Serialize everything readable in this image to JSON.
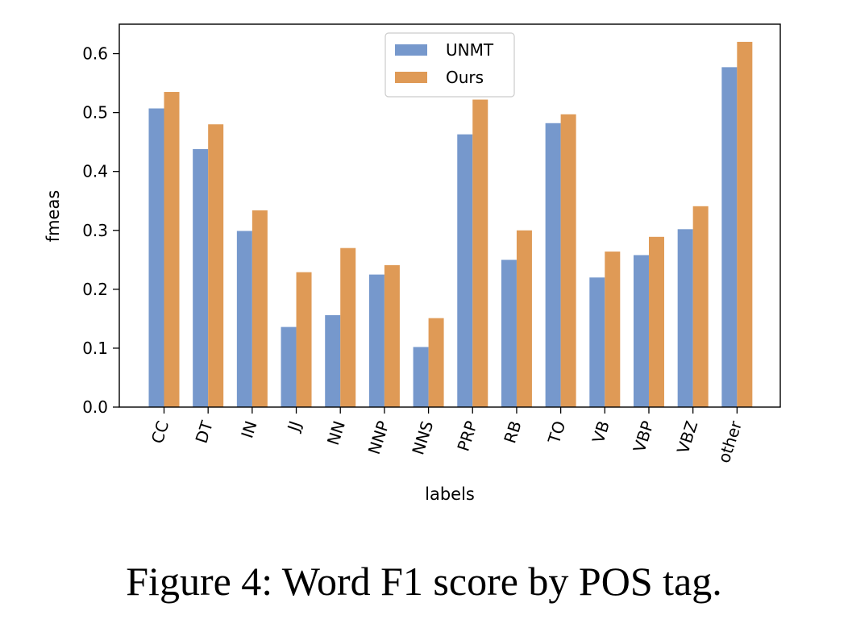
{
  "caption": "Figure 4: Word F1 score by POS tag.",
  "colors": {
    "unmt": "#7698cc",
    "ours": "#df9a56"
  },
  "chart_data": {
    "type": "bar",
    "xlabel": "labels",
    "ylabel": "fmeas",
    "ylim": [
      0,
      0.65
    ],
    "yticks": [
      "0.0",
      "0.1",
      "0.2",
      "0.3",
      "0.4",
      "0.5",
      "0.6"
    ],
    "categories": [
      "CC",
      "DT",
      "IN",
      "JJ",
      "NN",
      "NNP",
      "NNS",
      "PRP",
      "RB",
      "TO",
      "VB",
      "VBP",
      "VBZ",
      "other"
    ],
    "series": [
      {
        "name": "UNMT",
        "color": "#7698cc",
        "values": [
          0.507,
          0.438,
          0.299,
          0.136,
          0.156,
          0.225,
          0.102,
          0.463,
          0.25,
          0.482,
          0.22,
          0.258,
          0.302,
          0.577
        ]
      },
      {
        "name": "Ours",
        "color": "#df9a56",
        "values": [
          0.535,
          0.48,
          0.334,
          0.229,
          0.27,
          0.241,
          0.151,
          0.522,
          0.3,
          0.497,
          0.264,
          0.289,
          0.341,
          0.62
        ]
      }
    ],
    "legend_position": "top-center",
    "grid": false,
    "xtick_rotation": "rotated"
  }
}
